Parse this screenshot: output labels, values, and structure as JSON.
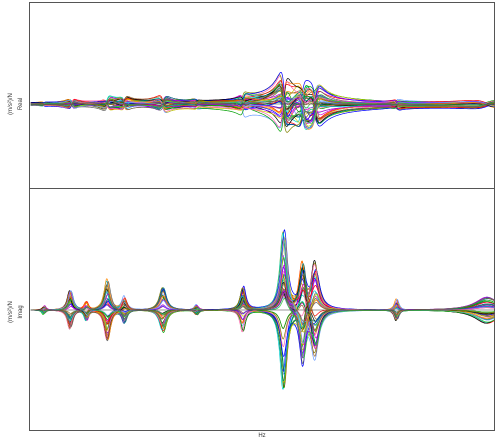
{
  "chart_data": [
    {
      "type": "line",
      "panel": "real",
      "ylabel_unit": "(m/s²)/N",
      "ylabel_component": "Real",
      "xlabel": "",
      "grid": false,
      "legend": "none",
      "peaks": [
        {
          "x": 0.028,
          "a": 0.02,
          "w": 0.004
        },
        {
          "x": 0.088,
          "a": 0.1,
          "w": 0.006
        },
        {
          "x": 0.165,
          "a": 0.14,
          "w": 0.007
        },
        {
          "x": 0.202,
          "a": 0.12,
          "w": 0.006
        },
        {
          "x": 0.285,
          "a": 0.16,
          "w": 0.008
        },
        {
          "x": 0.358,
          "a": 0.04,
          "w": 0.005
        },
        {
          "x": 0.458,
          "a": 0.15,
          "w": 0.006
        },
        {
          "x": 0.546,
          "a": 0.58,
          "w": 0.008
        },
        {
          "x": 0.587,
          "a": 0.4,
          "w": 0.009
        },
        {
          "x": 0.614,
          "a": 0.42,
          "w": 0.01
        },
        {
          "x": 0.79,
          "a": 0.05,
          "w": 0.005
        },
        {
          "x": 0.985,
          "a": 0.08,
          "w": 0.03
        }
      ]
    },
    {
      "type": "line",
      "panel": "imag",
      "ylabel_unit": "(m/s²)/N",
      "ylabel_component": "Imag",
      "xlabel": "Hz",
      "grid": false,
      "legend": "none",
      "peaks": [
        {
          "x": 0.028,
          "a": 0.04,
          "w": 0.004
        },
        {
          "x": 0.085,
          "a": 0.18,
          "w": 0.006
        },
        {
          "x": 0.12,
          "a": 0.1,
          "w": 0.005
        },
        {
          "x": 0.165,
          "a": 0.28,
          "w": 0.007
        },
        {
          "x": 0.202,
          "a": 0.12,
          "w": 0.006
        },
        {
          "x": 0.285,
          "a": 0.2,
          "w": 0.008
        },
        {
          "x": 0.358,
          "a": 0.05,
          "w": 0.005
        },
        {
          "x": 0.458,
          "a": 0.2,
          "w": 0.006
        },
        {
          "x": 0.546,
          "a": 0.7,
          "w": 0.008
        },
        {
          "x": 0.587,
          "a": 0.5,
          "w": 0.008
        },
        {
          "x": 0.614,
          "a": 0.45,
          "w": 0.01
        },
        {
          "x": 0.79,
          "a": 0.1,
          "w": 0.005
        },
        {
          "x": 0.985,
          "a": 0.12,
          "w": 0.03
        }
      ]
    }
  ],
  "series_colors": [
    "#ff0000",
    "#00a000",
    "#0000ff",
    "#00cccc",
    "#cc00cc",
    "#cccc00",
    "#000000",
    "#ff8800",
    "#8800ff",
    "#008080",
    "#808000",
    "#ff66aa",
    "#6699ff",
    "#33cc33",
    "#996633",
    "#666666"
  ],
  "series_count": 48
}
